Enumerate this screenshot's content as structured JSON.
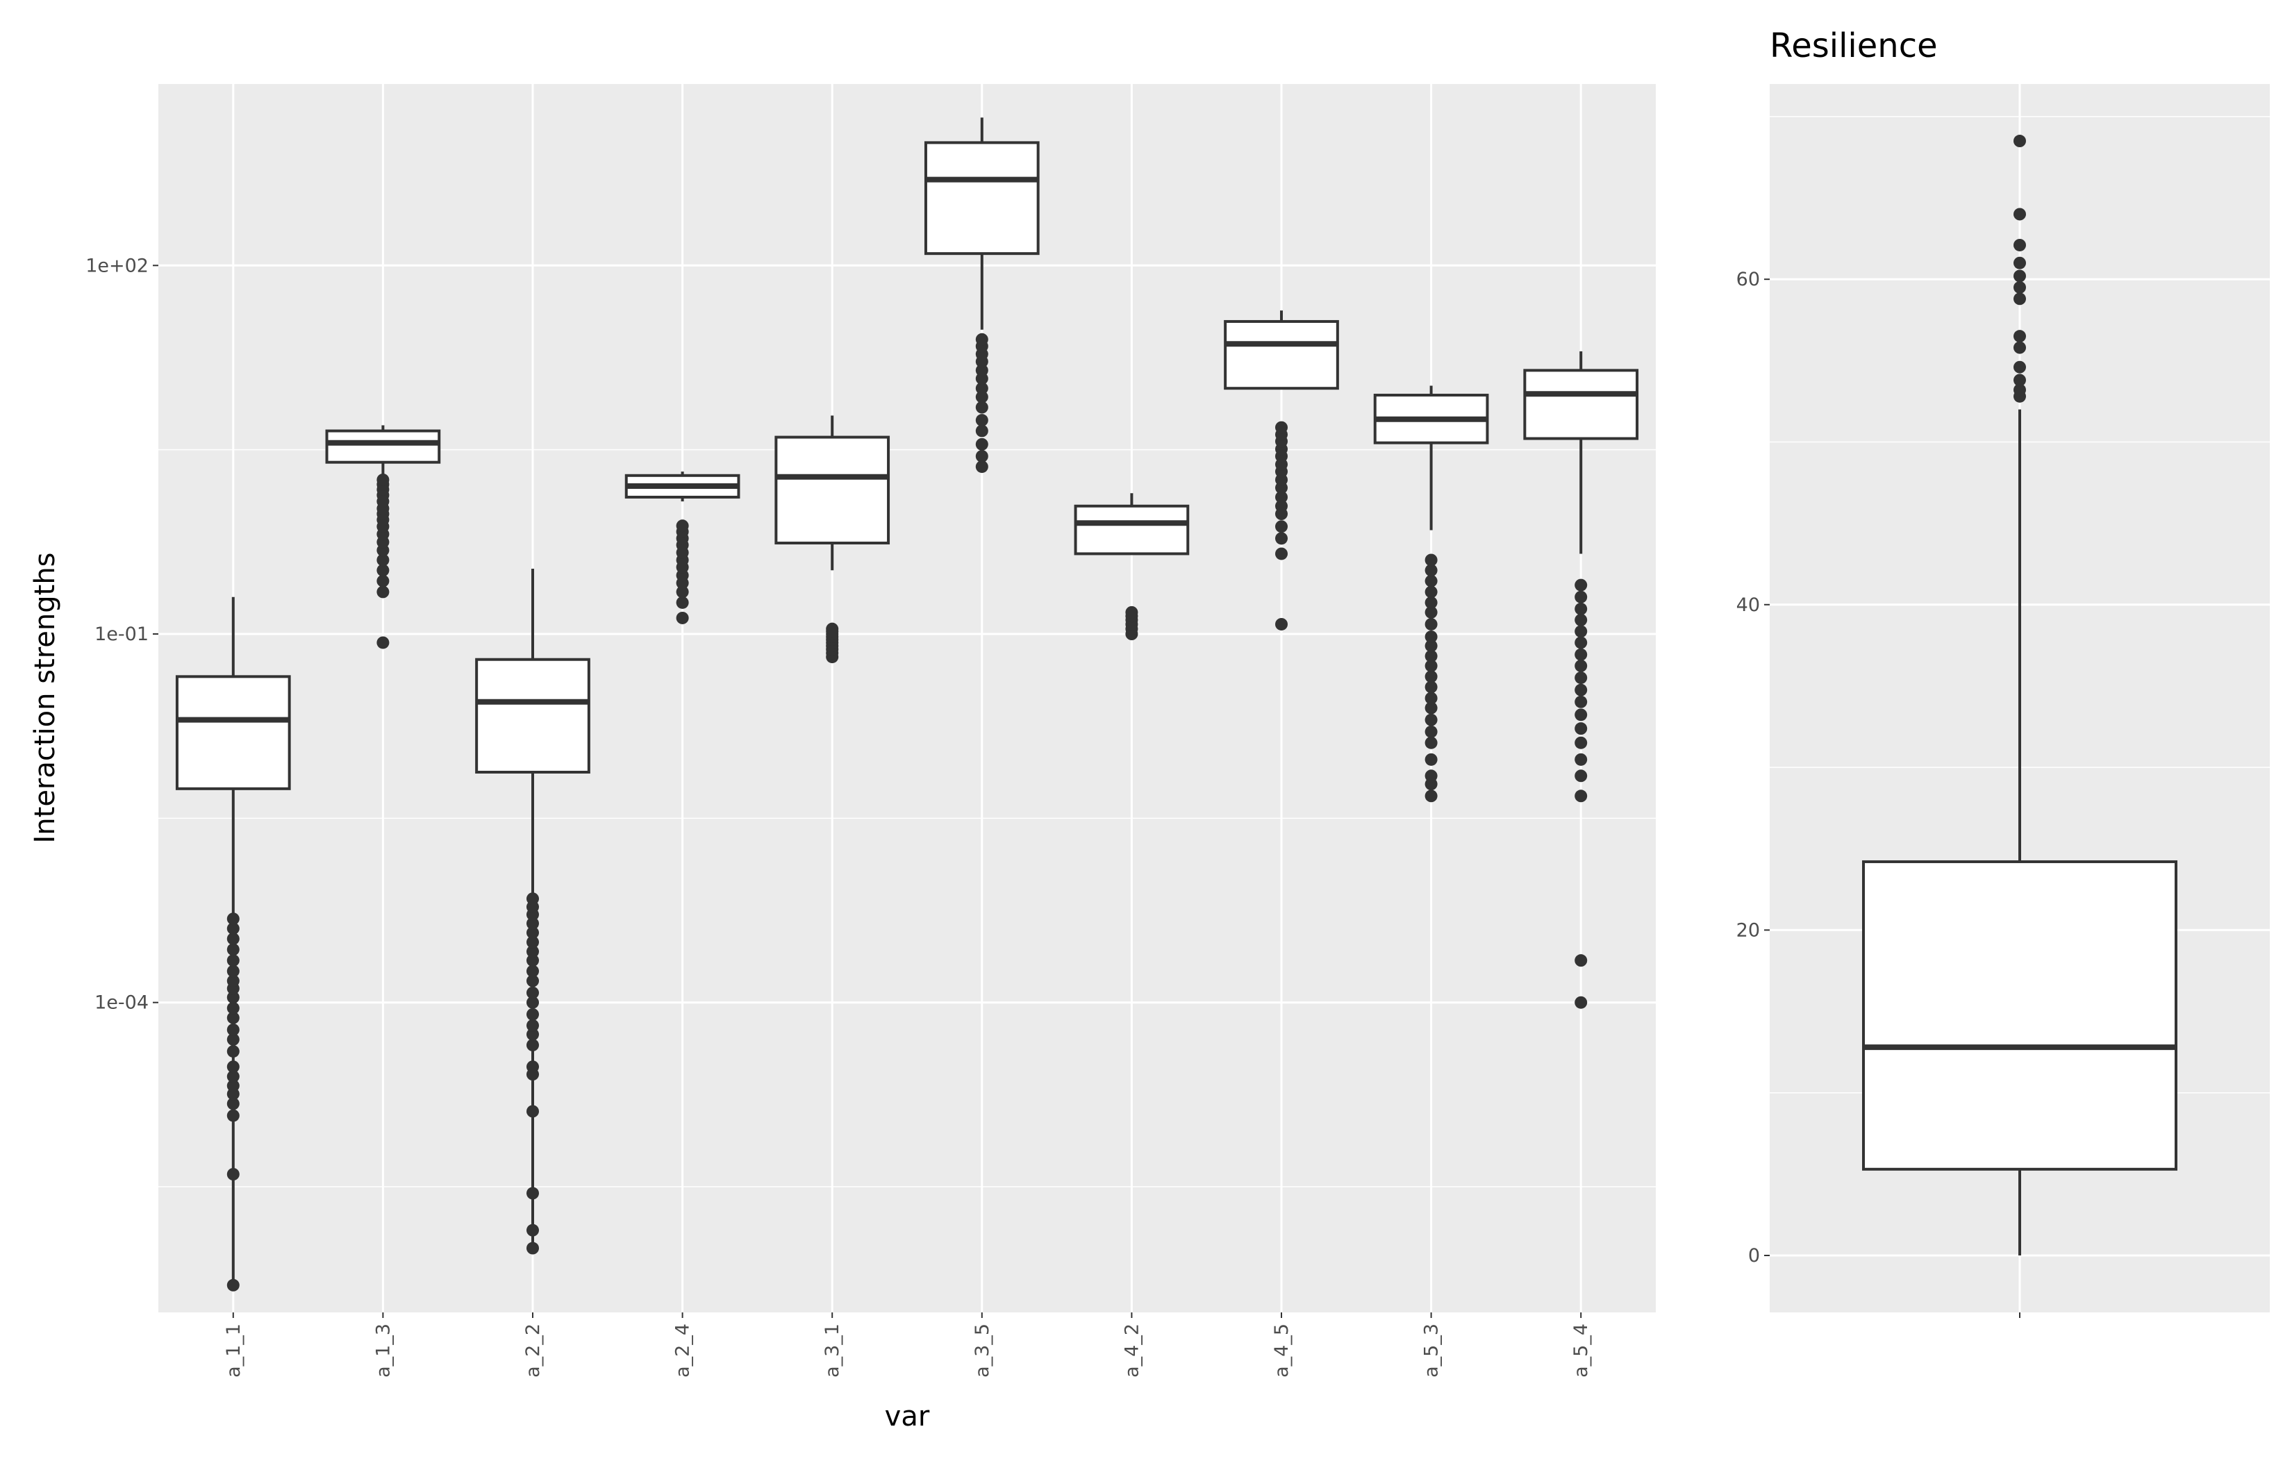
{
  "chart_data": [
    {
      "type": "box",
      "title": "",
      "xlabel": "var",
      "ylabel": "Interaction strengths",
      "y_scale": "log10",
      "ylim": [
        3e-07,
        3000
      ],
      "y_ticks": [
        0.0001,
        0.1,
        100
      ],
      "y_tick_labels": [
        "1e-04",
        "1e-01",
        "1e+02"
      ],
      "grid": true,
      "categories": [
        "a_1_1",
        "a_1_3",
        "a_2_2",
        "a_2_4",
        "a_3_1",
        "a_3_5",
        "a_4_2",
        "a_4_5",
        "a_5_3",
        "a_5_4"
      ],
      "boxes": [
        {
          "whisker_low": 5e-07,
          "q1": 0.0055,
          "median": 0.02,
          "q3": 0.045,
          "whisker_high": 0.2,
          "outliers": [
            5e-07,
            4e-06,
            1.2e-05,
            1.5e-05,
            1.8e-05,
            2.1e-05,
            2.5e-05,
            3e-05,
            4e-05,
            5e-05,
            6e-05,
            7.5e-05,
            9e-05,
            0.00011,
            0.00013,
            0.00015,
            0.00018,
            0.00022,
            0.00027,
            0.00033,
            0.0004,
            0.00048
          ]
        },
        {
          "whisker_low": 2.0,
          "q1": 2.5,
          "median": 3.6,
          "q3": 4.5,
          "whisker_high": 5.0,
          "outliers": [
            0.085,
            0.22,
            0.27,
            0.33,
            0.4,
            0.48,
            0.56,
            0.65,
            0.75,
            0.85,
            0.95,
            1.05,
            1.2,
            1.35,
            1.5,
            1.65,
            1.8
          ]
        },
        {
          "whisker_low": 1e-06,
          "q1": 0.0075,
          "median": 0.028,
          "q3": 0.062,
          "whisker_high": 0.34,
          "outliers": [
            1e-06,
            1.4e-06,
            2.8e-06,
            1.3e-05,
            2.6e-05,
            3e-05,
            4.5e-05,
            5.5e-05,
            6.5e-05,
            8e-05,
            0.0001,
            0.00012,
            0.00015,
            0.00018,
            0.00022,
            0.00026,
            0.00031,
            0.00037,
            0.00044,
            0.00052,
            0.0006,
            0.0007
          ]
        },
        {
          "whisker_low": 1.2,
          "q1": 1.3,
          "median": 1.6,
          "q3": 1.95,
          "whisker_high": 2.1,
          "outliers": [
            0.135,
            0.18,
            0.22,
            0.26,
            0.3,
            0.35,
            0.4,
            0.46,
            0.53,
            0.6,
            0.68,
            0.76
          ]
        },
        {
          "whisker_low": 0.33,
          "q1": 0.55,
          "median": 1.9,
          "q3": 4.0,
          "whisker_high": 6.0,
          "outliers": [
            0.065,
            0.07,
            0.075,
            0.08,
            0.085,
            0.09,
            0.095,
            0.1,
            0.105,
            0.11
          ]
        },
        {
          "whisker_low": 30,
          "q1": 125,
          "median": 500,
          "q3": 1000,
          "whisker_high": 1600,
          "outliers": [
            2.3,
            2.8,
            3.5,
            4.5,
            5.5,
            7.0,
            8.5,
            10,
            12,
            14,
            16.5,
            19,
            22,
            25
          ]
        },
        {
          "whisker_low": 0.45,
          "q1": 0.45,
          "median": 0.8,
          "q3": 1.1,
          "whisker_high": 1.4,
          "outliers": [
            0.1,
            0.11,
            0.12,
            0.13,
            0.14,
            0.15
          ]
        },
        {
          "whisker_low": 10,
          "q1": 10,
          "median": 23,
          "q3": 35,
          "whisker_high": 43,
          "outliers": [
            0.12,
            0.45,
            0.6,
            0.75,
            0.95,
            1.1,
            1.3,
            1.55,
            1.8,
            2.1,
            2.4,
            2.8,
            3.2,
            3.7,
            4.2,
            4.8
          ]
        },
        {
          "whisker_low": 0.7,
          "q1": 3.6,
          "median": 5.6,
          "q3": 8.8,
          "whisker_high": 10.5,
          "outliers": [
            0.0048,
            0.006,
            0.007,
            0.0095,
            0.013,
            0.016,
            0.02,
            0.025,
            0.03,
            0.037,
            0.045,
            0.055,
            0.066,
            0.08,
            0.095,
            0.12,
            0.15,
            0.18,
            0.22,
            0.27,
            0.33,
            0.4
          ]
        },
        {
          "whisker_low": 0.45,
          "q1": 3.9,
          "median": 9.0,
          "q3": 14.0,
          "whisker_high": 20,
          "outliers": [
            0.0001,
            0.00022,
            0.0048,
            0.007,
            0.0095,
            0.013,
            0.017,
            0.022,
            0.028,
            0.035,
            0.044,
            0.055,
            0.068,
            0.085,
            0.105,
            0.13,
            0.16,
            0.2,
            0.25
          ]
        }
      ]
    },
    {
      "type": "box",
      "title": "Resilience",
      "xlabel": "",
      "ylabel": "",
      "ylim": [
        -3.5,
        72
      ],
      "y_ticks": [
        0,
        20,
        40,
        60
      ],
      "y_tick_labels": [
        "0",
        "20",
        "40",
        "60"
      ],
      "grid": true,
      "boxes": [
        {
          "whisker_low": 0,
          "q1": 5.3,
          "median": 12.8,
          "q3": 24.2,
          "whisker_high": 52,
          "outliers": [
            52.8,
            53.2,
            53.8,
            54.6,
            55.8,
            56.5,
            58.8,
            59.5,
            60.2,
            61.0,
            62.1,
            64.0,
            68.5
          ]
        }
      ]
    }
  ]
}
